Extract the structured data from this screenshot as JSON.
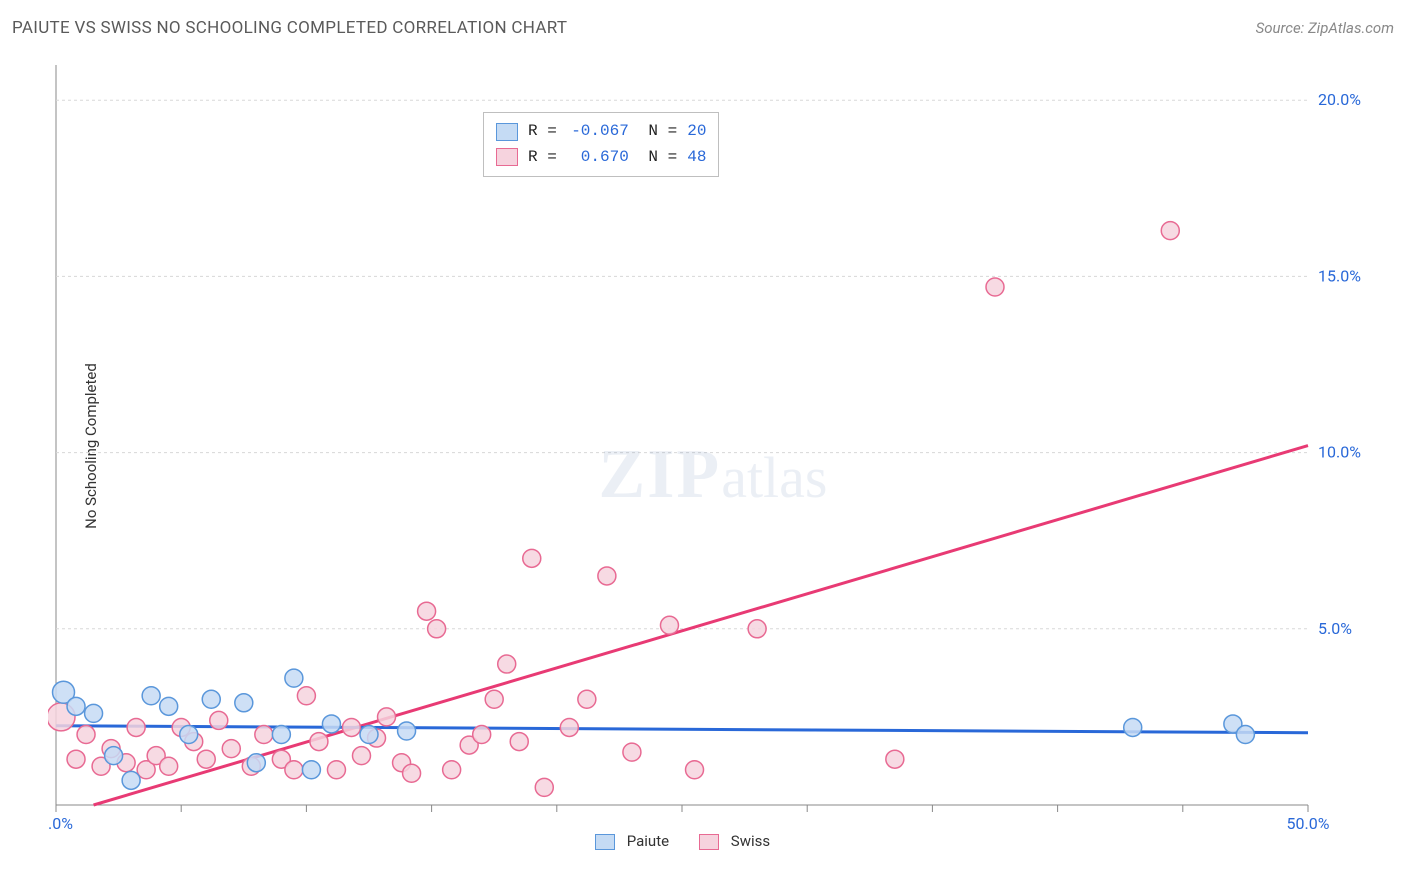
{
  "title": "PAIUTE VS SWISS NO SCHOOLING COMPLETED CORRELATION CHART",
  "source": "Source: ZipAtlas.com",
  "watermark_zip": "ZIP",
  "watermark_atlas": "atlas",
  "y_axis_label": "No Schooling Completed",
  "chart": {
    "type": "scatter",
    "background_color": "#ffffff",
    "grid_color": "#d8d8d8",
    "border_color": "#888888",
    "xlim": [
      0,
      50
    ],
    "ylim": [
      0,
      21
    ],
    "xtick_step": 5,
    "xtick_labels": [
      {
        "x": 0,
        "label": "0.0%"
      },
      {
        "x": 50,
        "label": "50.0%"
      }
    ],
    "ytick_labels": [
      {
        "y": 5,
        "label": "5.0%"
      },
      {
        "y": 10,
        "label": "10.0%"
      },
      {
        "y": 15,
        "label": "15.0%"
      },
      {
        "y": 20,
        "label": "20.0%"
      }
    ],
    "series": [
      {
        "name": "Paiute",
        "color_fill": "#c5dbf4",
        "color_stroke": "#5a97db",
        "marker_radius": 9,
        "N": 20,
        "R": "-0.067",
        "trend": {
          "x1": 0,
          "y1": 2.25,
          "x2": 50,
          "y2": 2.05,
          "stroke": "#2968d8",
          "width": 3
        },
        "points": [
          {
            "x": 0.3,
            "y": 3.2,
            "r": 11
          },
          {
            "x": 0.8,
            "y": 2.8
          },
          {
            "x": 1.5,
            "y": 2.6
          },
          {
            "x": 2.3,
            "y": 1.4
          },
          {
            "x": 3.0,
            "y": 0.7
          },
          {
            "x": 3.8,
            "y": 3.1
          },
          {
            "x": 4.5,
            "y": 2.8
          },
          {
            "x": 5.3,
            "y": 2.0
          },
          {
            "x": 6.2,
            "y": 3.0
          },
          {
            "x": 7.5,
            "y": 2.9
          },
          {
            "x": 8.0,
            "y": 1.2
          },
          {
            "x": 9.0,
            "y": 2.0
          },
          {
            "x": 9.5,
            "y": 3.6
          },
          {
            "x": 10.2,
            "y": 1.0
          },
          {
            "x": 11.0,
            "y": 2.3
          },
          {
            "x": 12.5,
            "y": 2.0
          },
          {
            "x": 14.0,
            "y": 2.1
          },
          {
            "x": 43.0,
            "y": 2.2
          },
          {
            "x": 47.0,
            "y": 2.3
          },
          {
            "x": 47.5,
            "y": 2.0
          }
        ]
      },
      {
        "name": "Swiss",
        "color_fill": "#f6d3de",
        "color_stroke": "#e86a93",
        "marker_radius": 9,
        "N": 48,
        "R": "0.670",
        "trend": {
          "x1": 1.5,
          "y1": 0,
          "x2": 50,
          "y2": 10.2,
          "stroke": "#e83a74",
          "width": 3
        },
        "points": [
          {
            "x": 0.2,
            "y": 2.5,
            "r": 14
          },
          {
            "x": 0.8,
            "y": 1.3
          },
          {
            "x": 1.2,
            "y": 2.0
          },
          {
            "x": 1.8,
            "y": 1.1
          },
          {
            "x": 2.2,
            "y": 1.6
          },
          {
            "x": 2.8,
            "y": 1.2
          },
          {
            "x": 3.2,
            "y": 2.2
          },
          {
            "x": 3.6,
            "y": 1.0
          },
          {
            "x": 4.0,
            "y": 1.4
          },
          {
            "x": 4.5,
            "y": 1.1
          },
          {
            "x": 5.0,
            "y": 2.2
          },
          {
            "x": 5.5,
            "y": 1.8
          },
          {
            "x": 6.0,
            "y": 1.3
          },
          {
            "x": 6.5,
            "y": 2.4
          },
          {
            "x": 7.0,
            "y": 1.6
          },
          {
            "x": 7.8,
            "y": 1.1
          },
          {
            "x": 8.3,
            "y": 2.0
          },
          {
            "x": 9.0,
            "y": 1.3
          },
          {
            "x": 9.5,
            "y": 1.0
          },
          {
            "x": 10.0,
            "y": 3.1
          },
          {
            "x": 10.5,
            "y": 1.8
          },
          {
            "x": 11.2,
            "y": 1.0
          },
          {
            "x": 11.8,
            "y": 2.2
          },
          {
            "x": 12.2,
            "y": 1.4
          },
          {
            "x": 12.8,
            "y": 1.9
          },
          {
            "x": 13.2,
            "y": 2.5
          },
          {
            "x": 13.8,
            "y": 1.2
          },
          {
            "x": 14.2,
            "y": 0.9
          },
          {
            "x": 14.8,
            "y": 5.5
          },
          {
            "x": 15.2,
            "y": 5.0
          },
          {
            "x": 15.8,
            "y": 1.0
          },
          {
            "x": 16.5,
            "y": 1.7
          },
          {
            "x": 17.0,
            "y": 2.0
          },
          {
            "x": 17.5,
            "y": 3.0
          },
          {
            "x": 18.0,
            "y": 4.0
          },
          {
            "x": 18.5,
            "y": 1.8
          },
          {
            "x": 19.0,
            "y": 7.0
          },
          {
            "x": 19.5,
            "y": 0.5
          },
          {
            "x": 20.5,
            "y": 2.2
          },
          {
            "x": 21.2,
            "y": 3.0
          },
          {
            "x": 22.0,
            "y": 6.5
          },
          {
            "x": 23.0,
            "y": 1.5
          },
          {
            "x": 24.5,
            "y": 5.1
          },
          {
            "x": 25.5,
            "y": 1.0
          },
          {
            "x": 28.0,
            "y": 5.0
          },
          {
            "x": 33.5,
            "y": 1.3
          },
          {
            "x": 37.5,
            "y": 14.7
          },
          {
            "x": 44.5,
            "y": 16.3
          }
        ]
      }
    ]
  },
  "legend": {
    "bottom": [
      {
        "label": "Paiute",
        "fill": "#c5dbf4",
        "stroke": "#5a97db"
      },
      {
        "label": "Swiss",
        "fill": "#f6d3de",
        "stroke": "#e86a93"
      }
    ]
  }
}
